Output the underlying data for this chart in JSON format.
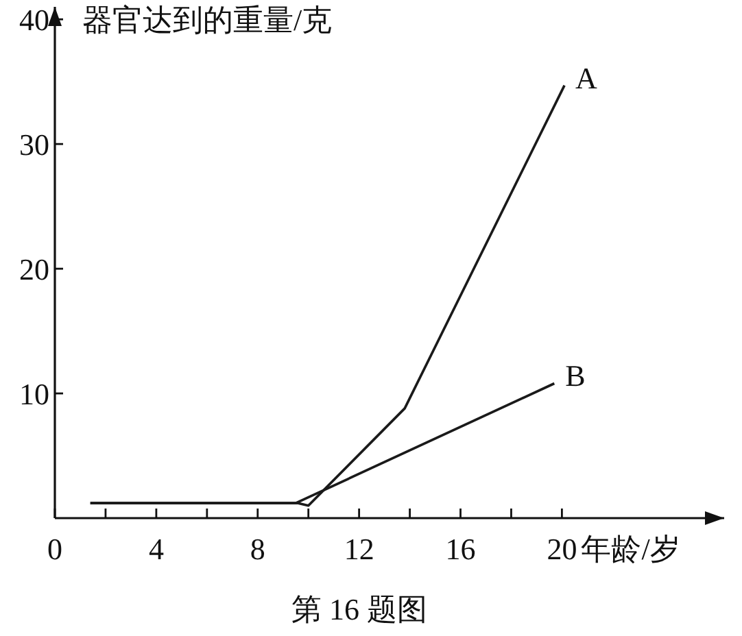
{
  "chart_data": {
    "type": "line",
    "xlabel": "年龄/岁",
    "ylabel": "器官达到的重量/克",
    "annotations": [
      "第 16 题图"
    ],
    "xlim": [
      0,
      26.4
    ],
    "ylim": [
      0,
      41
    ],
    "xticks": [
      0,
      {
        "value": 2,
        "label": null
      },
      4,
      {
        "value": 6,
        "label": null
      },
      8,
      {
        "value": 10,
        "label": null
      },
      12,
      {
        "value": 14,
        "label": null
      },
      16,
      {
        "value": 18,
        "label": null
      },
      20
    ],
    "yticks": [
      10,
      20,
      30,
      40
    ],
    "series": [
      {
        "name": "A",
        "color": "#1a1a1a",
        "x": [
          1.4,
          9.6,
          10,
          13.8,
          20.1
        ],
        "values": [
          1.2,
          1.2,
          1,
          8.8,
          34.7
        ]
      },
      {
        "name": "B",
        "color": "#1a1a1a",
        "x": [
          1.4,
          9.5,
          19.7
        ],
        "values": [
          1.2,
          1.2,
          10.8
        ]
      }
    ]
  }
}
